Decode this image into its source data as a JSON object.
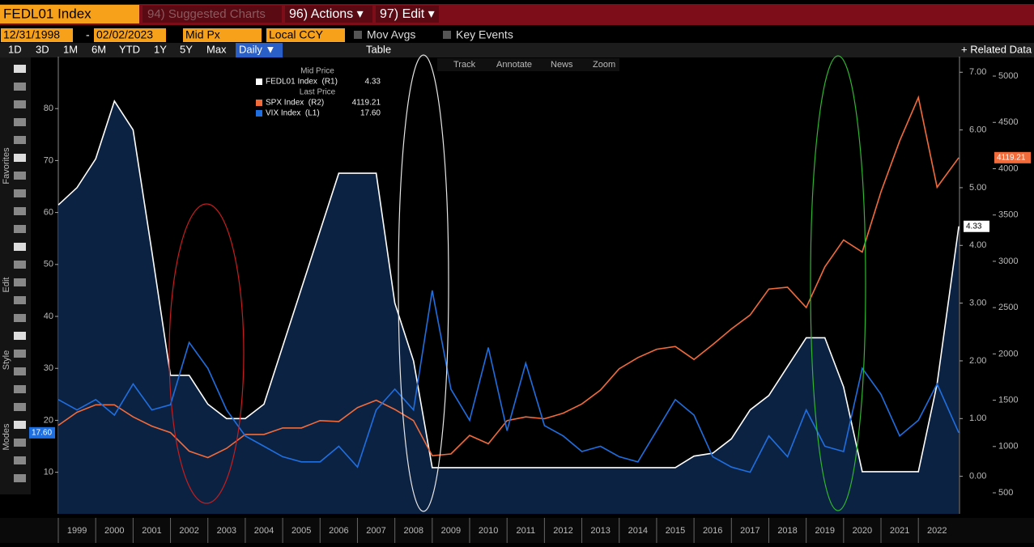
{
  "toolbar": {
    "ticker": "FEDL01 Index",
    "suggested": "94) Suggested Charts",
    "actions": "96) Actions ▾",
    "edit": "97) Edit ▾",
    "start_date": "12/31/1998",
    "end_date": "02/02/2023",
    "price_field": "Mid Px",
    "currency": "Local CCY",
    "mov_avgs": "Mov Avgs",
    "key_events": "Key Events",
    "periods": [
      "1D",
      "3D",
      "1M",
      "6M",
      "YTD",
      "1Y",
      "5Y",
      "Max"
    ],
    "frequency": "Daily ▼",
    "table": "Table",
    "related": "+ Related Data",
    "chart_tools": [
      "Track",
      "Annotate",
      "News",
      "Zoom"
    ]
  },
  "sidebar": [
    "Favorites",
    "Edit",
    "Style",
    "Modes"
  ],
  "chart_data": {
    "type": "line",
    "legend_groups": [
      "Mid Price",
      "Last Price"
    ],
    "x": [
      1999,
      1999.5,
      2000,
      2000.5,
      2001,
      2001.5,
      2002,
      2002.5,
      2003,
      2003.5,
      2004,
      2004.5,
      2005,
      2005.5,
      2006,
      2006.5,
      2007,
      2007.5,
      2008,
      2008.5,
      2009,
      2009.5,
      2010,
      2010.5,
      2011,
      2011.5,
      2012,
      2012.5,
      2013,
      2013.5,
      2014,
      2014.5,
      2015,
      2015.5,
      2016,
      2016.5,
      2017,
      2017.5,
      2018,
      2018.5,
      2019,
      2019.5,
      2020,
      2020.5,
      2021,
      2021.5,
      2022,
      2022.5,
      2023.08
    ],
    "xlim": [
      1999,
      2023.1
    ],
    "xticks": [
      1999,
      2000,
      2001,
      2002,
      2003,
      2004,
      2005,
      2006,
      2007,
      2008,
      2009,
      2010,
      2011,
      2012,
      2013,
      2014,
      2015,
      2016,
      2017,
      2018,
      2019,
      2020,
      2021,
      2022
    ],
    "ylim": [
      2,
      90
    ],
    "yticks": [
      10,
      20,
      30,
      40,
      50,
      60,
      70,
      80
    ],
    "y2lim": [
      -0.65,
      7.27
    ],
    "y2ticks": [
      {
        "value": 0,
        "label": "0.00"
      },
      {
        "value": 1,
        "label": "1.00"
      },
      {
        "value": 2,
        "label": "2.00"
      },
      {
        "value": 3,
        "label": "3.00"
      },
      {
        "value": 4,
        "label": "4.00"
      },
      {
        "value": 5,
        "label": "5.00"
      },
      {
        "value": 6,
        "label": "6.00"
      },
      {
        "value": 7,
        "label": "7.00"
      }
    ],
    "y3lim": [
      273,
      5210
    ],
    "y3ticks": [
      500,
      1000,
      1500,
      2000,
      2500,
      3000,
      3500,
      4000,
      4500,
      5000
    ],
    "grid": false,
    "series": [
      {
        "name": "FEDL01 Index  (R1)",
        "color": "#ffffff",
        "axis": "y2",
        "area": true,
        "group": 0,
        "values": [
          4.7,
          5.0,
          5.5,
          6.5,
          6.0,
          3.9,
          1.75,
          1.75,
          1.25,
          1.0,
          1.0,
          1.25,
          2.25,
          3.25,
          4.25,
          5.25,
          5.25,
          5.25,
          3.0,
          2.0,
          0.15,
          0.15,
          0.15,
          0.15,
          0.15,
          0.15,
          0.15,
          0.15,
          0.15,
          0.15,
          0.15,
          0.15,
          0.15,
          0.15,
          0.35,
          0.4,
          0.65,
          1.15,
          1.4,
          1.9,
          2.4,
          2.4,
          1.55,
          0.08,
          0.08,
          0.08,
          0.08,
          1.6,
          4.33
        ]
      },
      {
        "name": "SPX Index  (R2)",
        "color": "#f26b3a",
        "axis": "y3",
        "group": 1,
        "values": [
          1229,
          1370,
          1450,
          1450,
          1320,
          1220,
          1150,
          950,
          880,
          980,
          1130,
          1130,
          1200,
          1200,
          1280,
          1270,
          1420,
          1500,
          1400,
          1280,
          900,
          920,
          1120,
          1030,
          1280,
          1320,
          1300,
          1360,
          1460,
          1610,
          1840,
          1960,
          2050,
          2080,
          1940,
          2100,
          2270,
          2420,
          2700,
          2720,
          2500,
          2940,
          3230,
          3100,
          3750,
          4300,
          4770,
          3800,
          4119.21
        ]
      },
      {
        "name": "VIX Index  (L1)",
        "color": "#1f6fe0",
        "axis": "y",
        "group": 1,
        "last_value_label": "17.60",
        "values": [
          24,
          22,
          24,
          21,
          27,
          22,
          23,
          35,
          30,
          22,
          17,
          15,
          13,
          12,
          12,
          15,
          11,
          22,
          26,
          22,
          45,
          26,
          20,
          34,
          18,
          31,
          19,
          17,
          14,
          15,
          13,
          12,
          18,
          24,
          21,
          13,
          11,
          10,
          17,
          13,
          22,
          15,
          14,
          30,
          25,
          17,
          20,
          27,
          17.6
        ]
      }
    ]
  }
}
